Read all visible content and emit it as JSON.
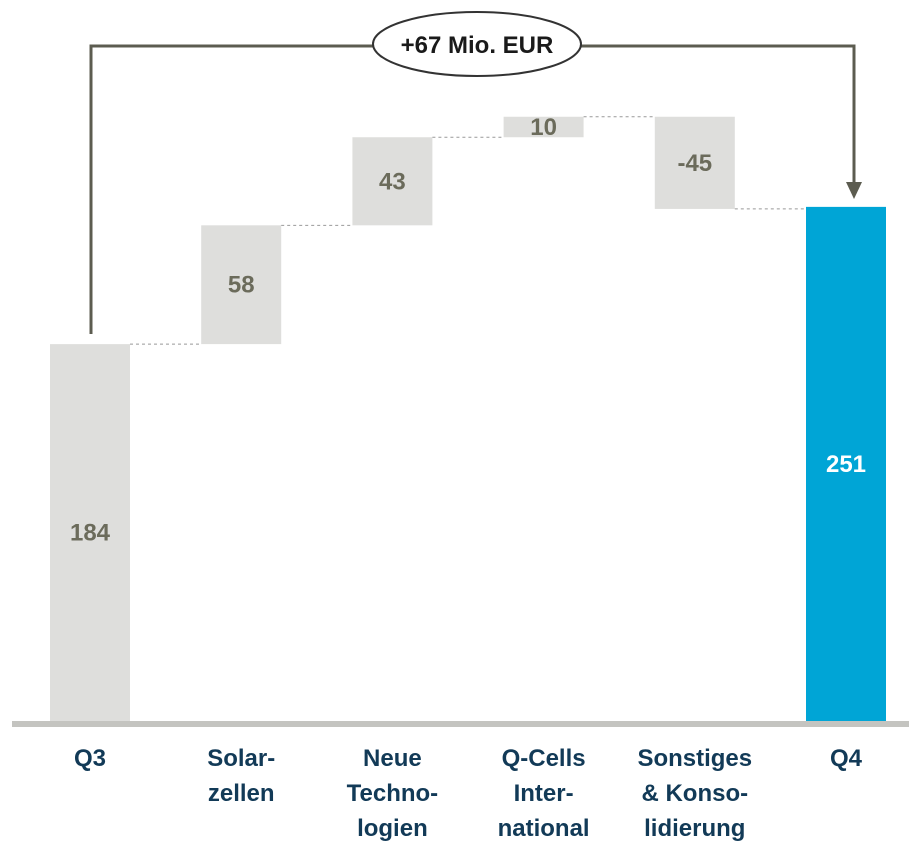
{
  "chart_data": {
    "type": "bar",
    "subtype": "waterfall",
    "categories": [
      [
        "Q3"
      ],
      [
        "Solar-",
        "zellen"
      ],
      [
        "Neue",
        "Techno-",
        "logien"
      ],
      [
        "Q-Cells",
        "Inter-",
        "national"
      ],
      [
        "Sonstiges",
        "& Konso-",
        "lidierung"
      ],
      [
        "Q4"
      ]
    ],
    "values": [
      184,
      58,
      43,
      10,
      -45,
      251
    ],
    "value_labels": [
      "184",
      "58",
      "43",
      "10",
      "-45",
      "251"
    ],
    "bar_kinds": [
      "total",
      "delta",
      "delta",
      "delta",
      "delta",
      "total"
    ],
    "ylim": [
      0,
      352
    ],
    "grid": false,
    "legend": "none",
    "total_change_label": "+67 Mio. EUR",
    "colors": {
      "bar": "#dededc",
      "highlight": "#00a5d6",
      "value_text": "#6b6b5b",
      "category_text": "#123a57",
      "connector": "#999999",
      "axis": "#c4c4c0",
      "arrow": "#5c5c50"
    }
  }
}
